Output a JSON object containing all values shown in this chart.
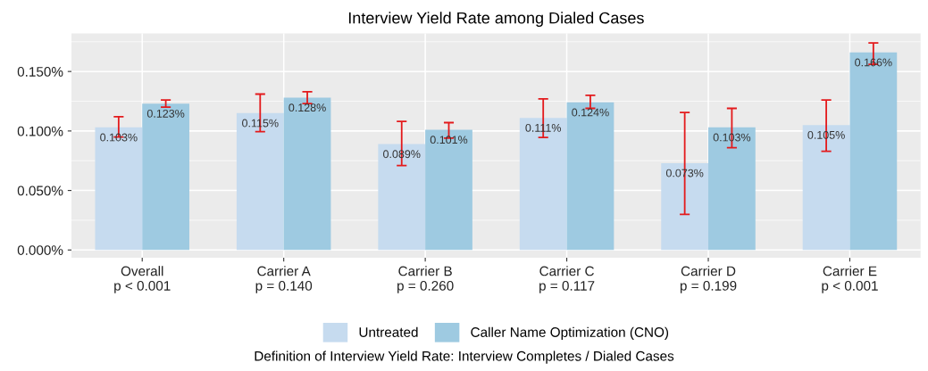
{
  "chart_data": {
    "type": "bar",
    "title": "Interview Yield Rate among Dialed Cases",
    "categories": [
      "Overall\np < 0.001",
      "Carrier A\np = 0.140",
      "Carrier B\np = 0.260",
      "Carrier C\np = 0.117",
      "Carrier D\np = 0.199",
      "Carrier E\np < 0.001"
    ],
    "series": [
      {
        "name": "Untreated",
        "color": "#c6dbef",
        "values": [
          0.103,
          0.115,
          0.089,
          0.111,
          0.073,
          0.105
        ],
        "value_labels": [
          "0.103%",
          "0.115%",
          "0.089%",
          "0.111%",
          "0.073%",
          "0.105%"
        ],
        "errors": [
          [
            0.095,
            0.112
          ],
          [
            0.0995,
            0.131
          ],
          [
            0.071,
            0.108
          ],
          [
            0.0945,
            0.127
          ],
          [
            0.03,
            0.1155
          ],
          [
            0.083,
            0.126
          ]
        ]
      },
      {
        "name": "Caller Name Optimization (CNO)",
        "color": "#9ecae1",
        "values": [
          0.123,
          0.128,
          0.101,
          0.124,
          0.103,
          0.166
        ],
        "value_labels": [
          "0.123%",
          "0.128%",
          "0.101%",
          "0.124%",
          "0.103%",
          "0.166%"
        ],
        "errors": [
          [
            0.12,
            0.126
          ],
          [
            0.123,
            0.133
          ],
          [
            0.094,
            0.107
          ],
          [
            0.119,
            0.13
          ],
          [
            0.086,
            0.119
          ],
          [
            0.156,
            0.174
          ]
        ]
      }
    ],
    "ylim": [
      -0.0066,
      0.182
    ],
    "yticks": [
      {
        "value": 0,
        "label": "0.000%"
      },
      {
        "value": 0.05,
        "label": "0.050%"
      },
      {
        "value": 0.1,
        "label": "0.100%"
      },
      {
        "value": 0.15,
        "label": "0.150%"
      }
    ],
    "grid": true,
    "legend": "bottom",
    "annotations": [
      "Definition of Interview Yield Rate: Interview Completes / Dialed Cases"
    ]
  }
}
